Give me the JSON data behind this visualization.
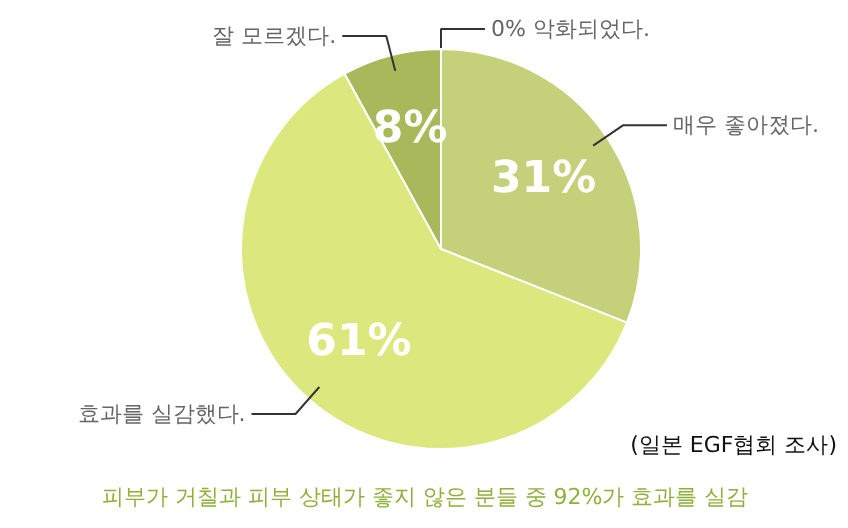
{
  "chart_data": {
    "type": "pie",
    "categories": [
      "0% 악화되었다.",
      "매우 좋아졌다.",
      "효과를 실감했다.",
      "잘 모르겠다."
    ],
    "values": [
      0,
      31,
      61,
      8
    ],
    "colors": [
      "#a8b85a",
      "#c5d07a",
      "#dce87e",
      "#a8b85a"
    ],
    "value_labels": [
      null,
      "31%",
      "61%",
      "8%"
    ],
    "legend": false,
    "annotations": [
      "(일본 EGF협회 조사)",
      "피부가 거칠과 피부 상태가 좋지 않은 분들 중 92%가 효과를 실감"
    ]
  }
}
